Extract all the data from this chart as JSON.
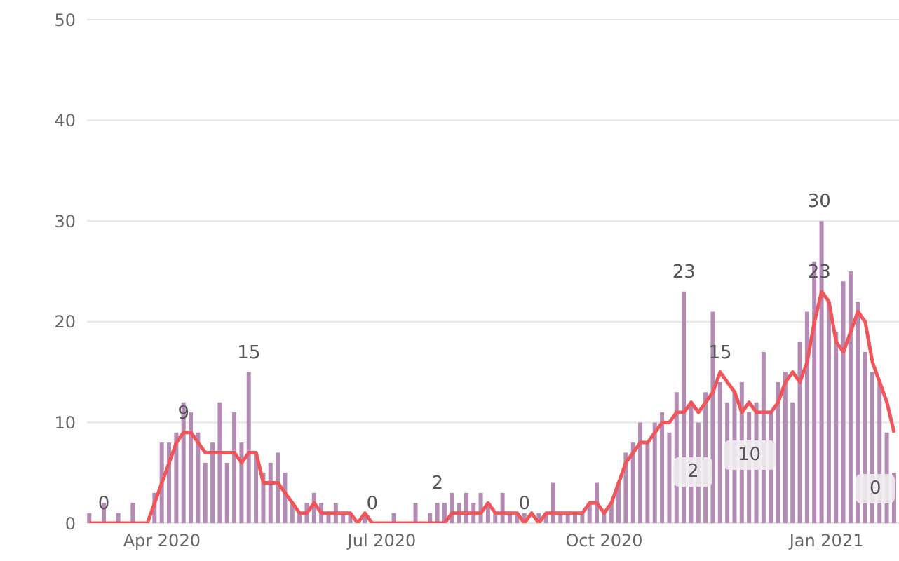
{
  "chart_data": {
    "type": "bar",
    "x": [
      "2020-03-02",
      "2020-03-05",
      "2020-03-08",
      "2020-03-11",
      "2020-03-14",
      "2020-03-17",
      "2020-03-20",
      "2020-03-23",
      "2020-03-26",
      "2020-03-29",
      "2020-04-01",
      "2020-04-04",
      "2020-04-07",
      "2020-04-10",
      "2020-04-13",
      "2020-04-16",
      "2020-04-19",
      "2020-04-22",
      "2020-04-25",
      "2020-04-28",
      "2020-05-01",
      "2020-05-04",
      "2020-05-07",
      "2020-05-10",
      "2020-05-13",
      "2020-05-16",
      "2020-05-19",
      "2020-05-22",
      "2020-05-25",
      "2020-05-28",
      "2020-05-31",
      "2020-06-03",
      "2020-06-06",
      "2020-06-09",
      "2020-06-12",
      "2020-06-15",
      "2020-06-18",
      "2020-06-21",
      "2020-06-24",
      "2020-06-27",
      "2020-06-30",
      "2020-07-03",
      "2020-07-06",
      "2020-07-09",
      "2020-07-12",
      "2020-07-15",
      "2020-07-18",
      "2020-07-21",
      "2020-07-24",
      "2020-07-27",
      "2020-07-30",
      "2020-08-02",
      "2020-08-05",
      "2020-08-08",
      "2020-08-11",
      "2020-08-14",
      "2020-08-17",
      "2020-08-20",
      "2020-08-23",
      "2020-08-26",
      "2020-08-29",
      "2020-09-01",
      "2020-09-04",
      "2020-09-07",
      "2020-09-10",
      "2020-09-13",
      "2020-09-16",
      "2020-09-19",
      "2020-09-22",
      "2020-09-25",
      "2020-09-28",
      "2020-10-01",
      "2020-10-04",
      "2020-10-07",
      "2020-10-10",
      "2020-10-13",
      "2020-10-16",
      "2020-10-19",
      "2020-10-22",
      "2020-10-25",
      "2020-10-28",
      "2020-10-31",
      "2020-11-03",
      "2020-11-06",
      "2020-11-09",
      "2020-11-12",
      "2020-11-15",
      "2020-11-18",
      "2020-11-21",
      "2020-11-24",
      "2020-11-27",
      "2020-11-30",
      "2020-12-03",
      "2020-12-06",
      "2020-12-09",
      "2020-12-12",
      "2020-12-15",
      "2020-12-18",
      "2020-12-21",
      "2020-12-24",
      "2020-12-27",
      "2020-12-30",
      "2021-01-02",
      "2021-01-05",
      "2021-01-08",
      "2021-01-11",
      "2021-01-14",
      "2021-01-17",
      "2021-01-20",
      "2021-01-23",
      "2021-01-26",
      "2021-01-29"
    ],
    "series": [
      {
        "color": "#b48bb5",
        "values": [
          1,
          0,
          2,
          0,
          1,
          0,
          2,
          0,
          0,
          3,
          8,
          8,
          9,
          12,
          11,
          9,
          6,
          8,
          12,
          6,
          11,
          8,
          15,
          7,
          5,
          6,
          7,
          5,
          2,
          1,
          2,
          3,
          2,
          1,
          2,
          1,
          1,
          0,
          1,
          0,
          0,
          0,
          1,
          0,
          0,
          2,
          0,
          1,
          2,
          2,
          3,
          2,
          3,
          2,
          3,
          2,
          1,
          3,
          1,
          1,
          1,
          0,
          1,
          1,
          4,
          1,
          1,
          1,
          1,
          2,
          4,
          1,
          2,
          4,
          7,
          8,
          10,
          8,
          10,
          11,
          9,
          13,
          23,
          12,
          10,
          13,
          21,
          14,
          12,
          13,
          14,
          11,
          12,
          17,
          11,
          14,
          15,
          12,
          18,
          21,
          26,
          30,
          22,
          19,
          24,
          25,
          22,
          17,
          15,
          14,
          9,
          5
        ]
      },
      {
        "type": "line",
        "color": "#f0555a",
        "values": [
          0,
          0,
          0,
          0,
          0,
          0,
          0,
          0,
          0,
          2,
          4,
          6,
          8,
          9,
          9,
          8,
          7,
          7,
          7,
          7,
          7,
          6,
          7,
          7,
          4,
          4,
          4,
          3,
          2,
          1,
          1,
          2,
          1,
          1,
          1,
          1,
          1,
          0,
          1,
          0,
          0,
          0,
          0,
          0,
          0,
          0,
          0,
          0,
          0,
          0,
          1,
          1,
          1,
          1,
          1,
          2,
          1,
          1,
          1,
          1,
          0,
          1,
          0,
          1,
          1,
          1,
          1,
          1,
          1,
          2,
          2,
          1,
          2,
          4,
          6,
          7,
          8,
          8,
          9,
          10,
          10,
          11,
          11,
          12,
          11,
          12,
          13,
          15,
          14,
          13,
          11,
          12,
          11,
          11,
          11,
          12,
          14,
          15,
          14,
          16,
          20,
          23,
          22,
          18,
          17,
          19,
          21,
          20,
          16,
          14,
          12,
          9
        ]
      }
    ],
    "xlim": [
      "2020-03-01",
      "2021-01-31"
    ],
    "xticks": [
      {
        "value": "2020-04-01",
        "label": "Apr 2020"
      },
      {
        "value": "2020-07-01",
        "label": "Jul 2020"
      },
      {
        "value": "2020-10-01",
        "label": "Oct 2020"
      },
      {
        "value": "2021-01-01",
        "label": "Jan 2021"
      }
    ],
    "ylim": [
      0,
      50
    ],
    "yticks": [
      0,
      10,
      20,
      30,
      40,
      50
    ],
    "grid": "y",
    "marker": "none",
    "line_style": "solid",
    "annotations": [
      {
        "text": "0",
        "x": "2020-03-08",
        "y": 0
      },
      {
        "text": "9",
        "x": "2020-04-10",
        "y": 9
      },
      {
        "text": "15",
        "x": "2020-05-07",
        "y": 15
      },
      {
        "text": "0",
        "x": "2020-06-27",
        "y": 0
      },
      {
        "text": "2",
        "x": "2020-07-24",
        "y": 2
      },
      {
        "text": "0",
        "x": "2020-08-29",
        "y": 0
      },
      {
        "text": "23",
        "x": "2020-11-03",
        "y": 23
      },
      {
        "text": "15",
        "x": "2020-11-18",
        "y": 15
      },
      "2",
      "10",
      {
        "text": "30",
        "x": "2020-12-29",
        "y": 30
      },
      {
        "text": "23",
        "x": "2020-12-29",
        "y": 23
      },
      "0"
    ]
  }
}
